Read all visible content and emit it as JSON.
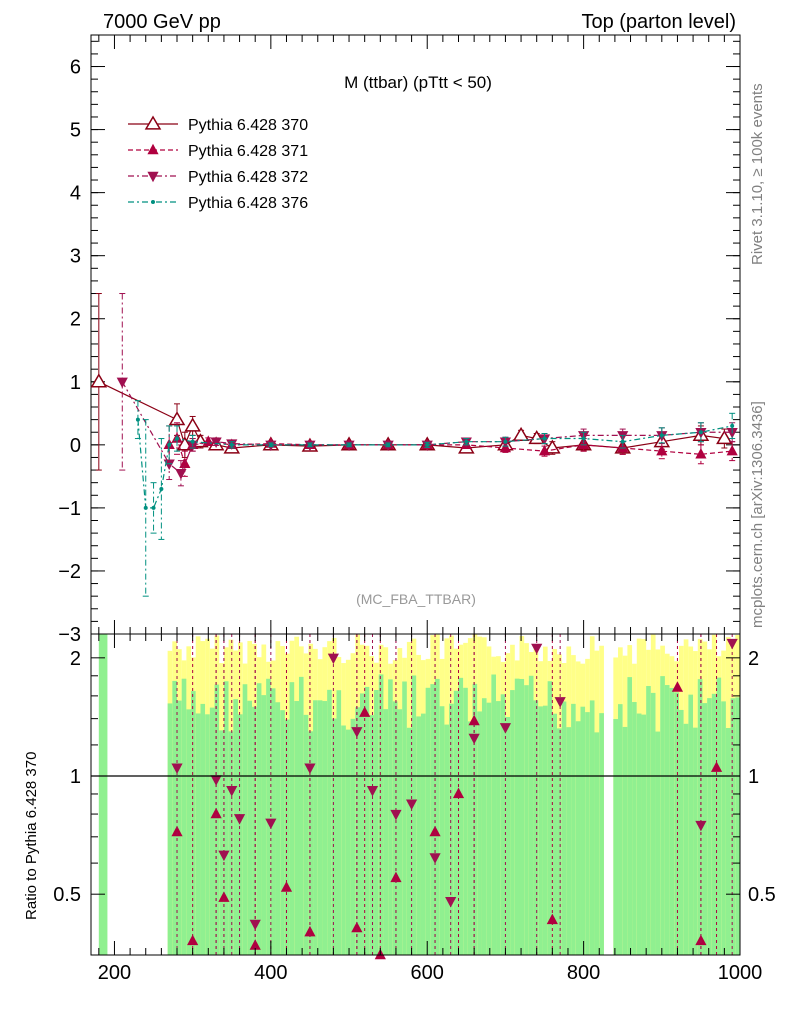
{
  "header": {
    "left": "7000 GeV pp",
    "right": "Top (parton level)"
  },
  "side_labels": {
    "rivet": "Rivet 3.1.10, ≥ 100k events",
    "mcplots": "mcplots.cern.ch [arXiv:1306.3436]"
  },
  "colors": {
    "s370": "#8b0015",
    "s371": "#b0003f",
    "s372": "#a01050",
    "s376": "#009080",
    "band_yellow": "#ffff88",
    "band_green": "#90f090"
  },
  "chart_data": [
    {
      "type": "line",
      "title": "M (ttbar) (pTtt < 50)",
      "annotation": "(MC_FBA_TTBAR)",
      "xlim": [
        170,
        1000
      ],
      "ylim": [
        -3,
        6.5
      ],
      "yticks": [
        -3,
        -2,
        -1,
        0,
        1,
        2,
        3,
        4,
        5,
        6
      ],
      "xticks": [
        200,
        400,
        600,
        800,
        1000
      ],
      "legend": "top-left",
      "series": [
        {
          "name": "Pythia 6.428 370",
          "marker": "open-triangle-up",
          "style": "solid",
          "x": [
            180,
            280,
            290,
            300,
            310,
            330,
            350,
            400,
            450,
            500,
            550,
            600,
            650,
            700,
            720,
            740,
            760,
            800,
            850,
            900,
            950,
            980
          ],
          "y": [
            1.0,
            0.4,
            0.0,
            0.3,
            0.05,
            0.0,
            -0.05,
            0.0,
            -0.02,
            0.0,
            0.0,
            0.0,
            -0.05,
            0.0,
            0.15,
            0.1,
            -0.05,
            0.0,
            -0.05,
            0.05,
            0.15,
            0.1
          ],
          "err": [
            1.4,
            0.25,
            0.2,
            0.15,
            0.1,
            0.05,
            0.05,
            0.03,
            0.03,
            0.03,
            0.03,
            0.04,
            0.05,
            0.07,
            0.08,
            0.08,
            0.1,
            0.1,
            0.1,
            0.12,
            0.15,
            0.15
          ]
        },
        {
          "name": "Pythia 6.428 371",
          "marker": "filled-triangle-up",
          "style": "dashed",
          "x": [
            270,
            280,
            290,
            300,
            320,
            350,
            400,
            450,
            500,
            550,
            600,
            650,
            700,
            750,
            800,
            850,
            900,
            950,
            990
          ],
          "y": [
            0.0,
            0.1,
            -0.3,
            0.0,
            0.05,
            0.0,
            0.02,
            0.0,
            0.0,
            0.0,
            0.0,
            0.0,
            -0.05,
            -0.1,
            0.0,
            -0.05,
            -0.1,
            -0.15,
            -0.1
          ],
          "err": [
            0.3,
            0.25,
            0.2,
            0.1,
            0.06,
            0.04,
            0.03,
            0.03,
            0.03,
            0.03,
            0.04,
            0.05,
            0.07,
            0.08,
            0.1,
            0.1,
            0.12,
            0.15,
            0.15
          ]
        },
        {
          "name": "Pythia 6.428 372",
          "marker": "filled-triangle-down",
          "style": "dashdot",
          "x": [
            210,
            270,
            285,
            300,
            330,
            350,
            400,
            450,
            500,
            550,
            600,
            650,
            700,
            750,
            800,
            850,
            900,
            950,
            990
          ],
          "y": [
            1.0,
            -0.3,
            -0.45,
            0.0,
            0.05,
            0.02,
            0.0,
            0.0,
            0.0,
            0.0,
            0.0,
            0.05,
            0.05,
            0.1,
            0.15,
            0.15,
            0.15,
            0.2,
            0.2
          ],
          "err": [
            1.4,
            0.25,
            0.2,
            0.1,
            0.06,
            0.04,
            0.03,
            0.03,
            0.03,
            0.03,
            0.04,
            0.05,
            0.07,
            0.08,
            0.1,
            0.1,
            0.12,
            0.15,
            0.15
          ]
        },
        {
          "name": "Pythia 6.428 376",
          "marker": "dot",
          "style": "dashdot",
          "x": [
            230,
            240,
            250,
            260,
            270,
            280,
            300,
            350,
            400,
            450,
            500,
            550,
            600,
            650,
            700,
            750,
            800,
            850,
            900,
            950,
            990
          ],
          "y": [
            0.4,
            -1.0,
            -1.0,
            -0.7,
            0.0,
            0.1,
            0.05,
            0.0,
            0.0,
            0.0,
            0.0,
            0.0,
            0.0,
            0.05,
            0.05,
            0.1,
            0.1,
            0.05,
            0.15,
            0.2,
            0.3
          ],
          "err": [
            0.3,
            1.4,
            0.4,
            0.8,
            0.3,
            0.2,
            0.1,
            0.05,
            0.03,
            0.03,
            0.03,
            0.03,
            0.04,
            0.05,
            0.07,
            0.08,
            0.1,
            0.1,
            0.12,
            0.15,
            0.2
          ]
        }
      ]
    },
    {
      "type": "line",
      "ylabel": "Ratio to Pythia 6.428 370",
      "xlim": [
        170,
        1000
      ],
      "ylim": [
        0.35,
        2.3
      ],
      "yticks": [
        0.5,
        1,
        2
      ],
      "xticks": [
        200,
        400,
        600,
        800,
        1000
      ],
      "reference_line": 1,
      "series": [
        {
          "name": "Pythia 6.428 371",
          "marker": "filled-triangle-up",
          "x": [
            280,
            300,
            330,
            340,
            380,
            420,
            450,
            510,
            520,
            540,
            560,
            610,
            640,
            660,
            760,
            920,
            950,
            970
          ],
          "y": [
            0.72,
            0.38,
            0.8,
            0.49,
            0.37,
            0.52,
            0.4,
            0.41,
            1.45,
            0.35,
            0.55,
            0.72,
            0.9,
            1.38,
            0.43,
            1.68,
            0.38,
            1.05
          ]
        },
        {
          "name": "Pythia 6.428 372",
          "marker": "filled-triangle-down",
          "x": [
            280,
            330,
            340,
            350,
            360,
            380,
            400,
            450,
            480,
            510,
            530,
            560,
            580,
            610,
            630,
            660,
            700,
            740,
            770,
            950,
            990
          ],
          "y": [
            1.05,
            0.98,
            0.63,
            0.92,
            0.78,
            0.42,
            0.76,
            1.05,
            2.0,
            1.3,
            0.92,
            0.8,
            0.85,
            0.62,
            0.48,
            1.25,
            1.33,
            2.12,
            1.55,
            0.75,
            2.18
          ]
        }
      ]
    }
  ]
}
